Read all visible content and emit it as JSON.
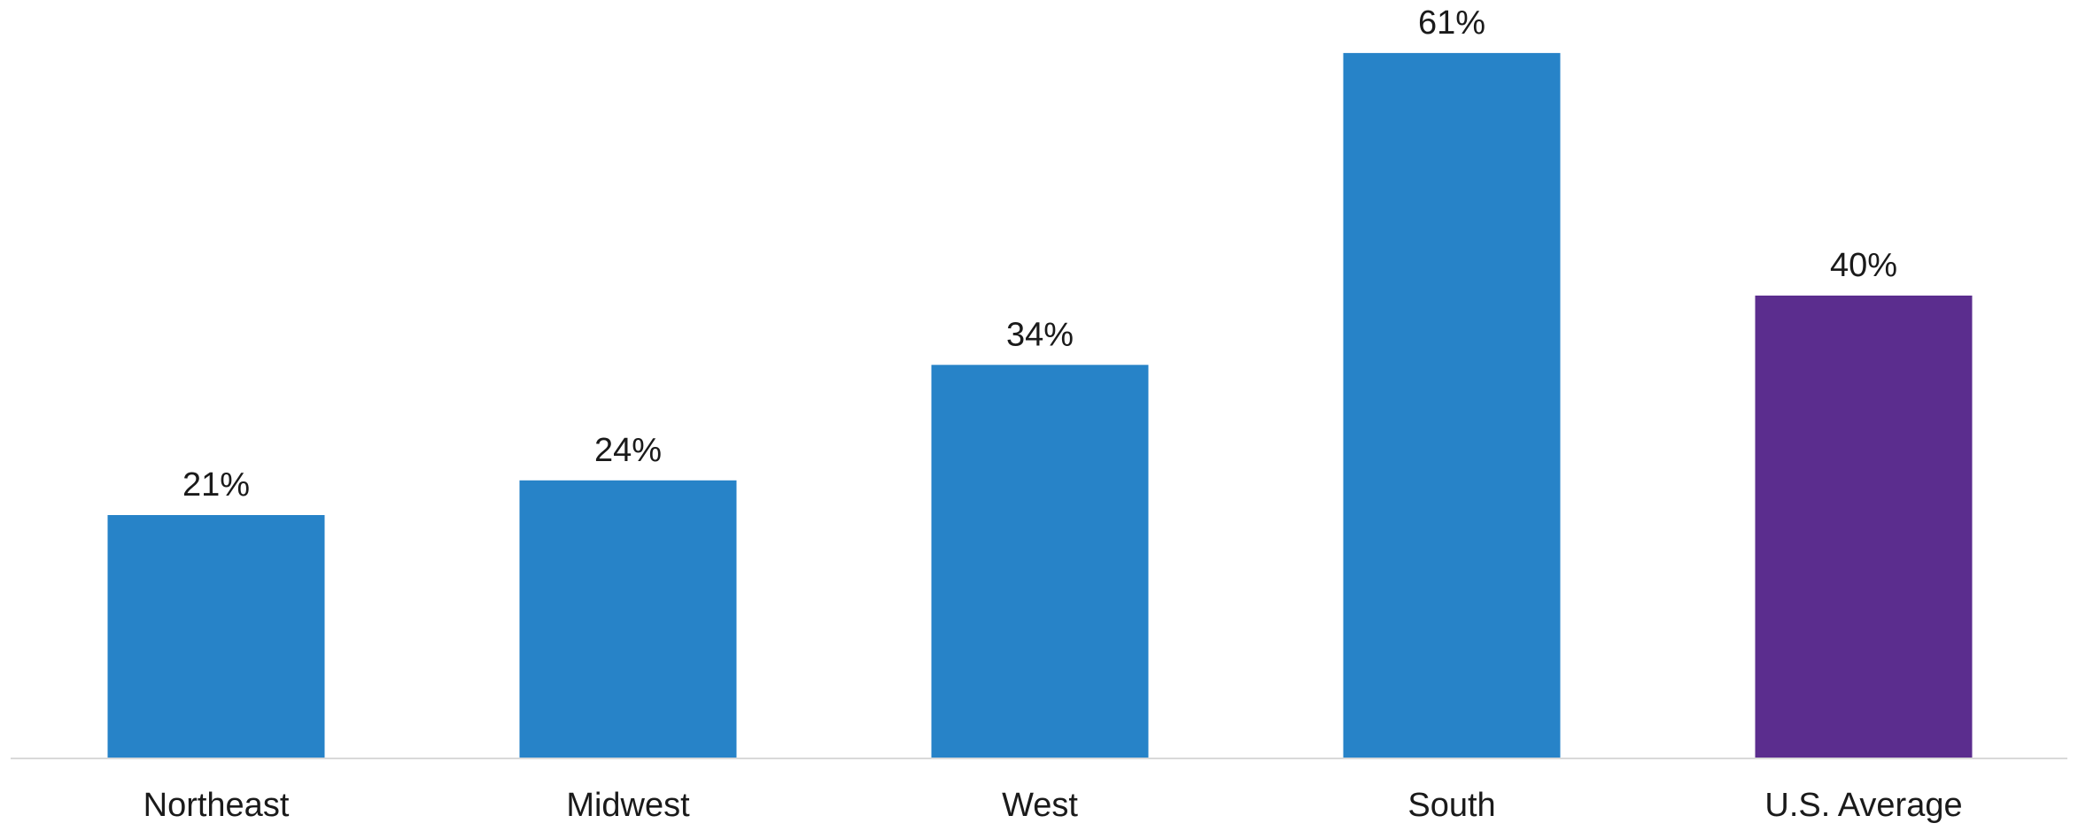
{
  "chart_data": {
    "type": "bar",
    "categories": [
      "Northeast",
      "Midwest",
      "West",
      "South",
      "U.S. Average"
    ],
    "values": [
      21,
      24,
      34,
      61,
      40
    ],
    "data_labels": [
      "21%",
      "24%",
      "34%",
      "61%",
      "40%"
    ],
    "value_unit": "%",
    "ylim": [
      0,
      65
    ],
    "grid": false,
    "legend": "none",
    "colors": {
      "bar_default": "#2783C8",
      "bar_highlight": "#5B2D8E",
      "axis_line": "#D9D9D9",
      "label_text": "#1A1A1A"
    },
    "highlight_categories": [
      "U.S. Average"
    ]
  }
}
